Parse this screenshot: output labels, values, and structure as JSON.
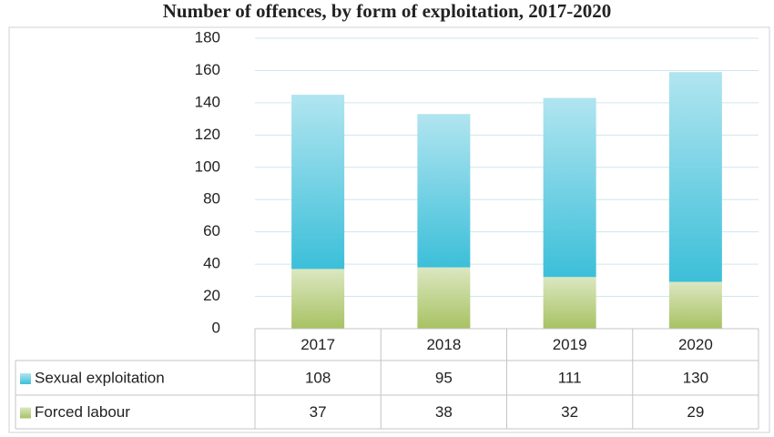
{
  "chart_data": {
    "type": "stacked_bar",
    "title": "Number of offences, by form of exploitation, 2017-2020",
    "categories": [
      "2017",
      "2018",
      "2019",
      "2020"
    ],
    "series": [
      {
        "name": "Forced labour",
        "color": "#a8c263",
        "values": [
          37,
          38,
          32,
          29
        ]
      },
      {
        "name": "Sexual exploitation",
        "color": "#3cbfd9",
        "values": [
          108,
          95,
          111,
          130
        ]
      }
    ],
    "ylim": [
      0,
      180
    ],
    "yticks": [
      0,
      20,
      40,
      60,
      80,
      100,
      120,
      140,
      160,
      180
    ],
    "grid": true
  }
}
